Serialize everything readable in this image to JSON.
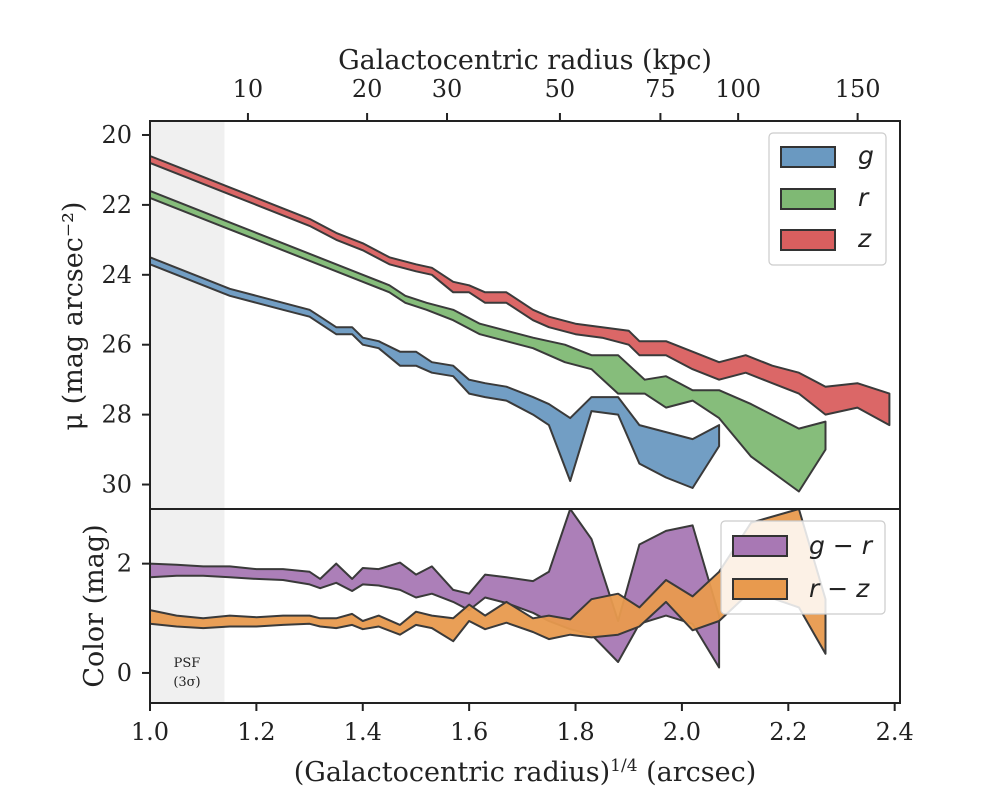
{
  "chart_data": [
    {
      "type": "area",
      "panel": "surface-brightness",
      "top_xlabel": "Galactocentric radius (kpc)",
      "top_ticks": [
        {
          "label": "10",
          "radius_kpc": 10
        },
        {
          "label": "20",
          "radius_kpc": 20
        },
        {
          "label": "30",
          "radius_kpc": 30
        },
        {
          "label": "50",
          "radius_kpc": 50
        },
        {
          "label": "75",
          "radius_kpc": 75
        },
        {
          "label": "100",
          "radius_kpc": 100
        },
        {
          "label": "150",
          "radius_kpc": 150
        }
      ],
      "ylabel": "μ (mag arcsec⁻²)",
      "ylim": [
        30.7,
        19.6
      ],
      "yticks": [
        20,
        22,
        24,
        26,
        28,
        30
      ],
      "xlim": [
        1.0,
        2.41
      ],
      "shaded_region": {
        "x": [
          1.0,
          1.14
        ],
        "label_line1": "PSF",
        "label_line2": "(3σ)"
      },
      "legend": {
        "position": "top-right",
        "entries": [
          "g",
          "r",
          "z"
        ]
      },
      "series": [
        {
          "name": "g",
          "color": "#6a99c1",
          "x": [
            1.0,
            1.05,
            1.1,
            1.15,
            1.2,
            1.25,
            1.3,
            1.32,
            1.35,
            1.38,
            1.4,
            1.43,
            1.47,
            1.5,
            1.53,
            1.57,
            1.6,
            1.63,
            1.67,
            1.72,
            1.75,
            1.79,
            1.83,
            1.88,
            1.92,
            1.97,
            2.02,
            2.07
          ],
          "lower": [
            23.5,
            23.8,
            24.1,
            24.4,
            24.6,
            24.8,
            25.0,
            25.2,
            25.5,
            25.5,
            25.8,
            25.9,
            26.2,
            26.2,
            26.5,
            26.6,
            27.0,
            27.1,
            27.2,
            27.5,
            27.7,
            28.1,
            27.5,
            27.5,
            28.3,
            28.5,
            28.7,
            28.3
          ],
          "upper": [
            23.7,
            24.0,
            24.3,
            24.6,
            24.8,
            25.0,
            25.2,
            25.4,
            25.7,
            25.7,
            26.0,
            26.1,
            26.6,
            26.6,
            26.8,
            26.9,
            27.4,
            27.5,
            27.6,
            28.0,
            28.3,
            29.9,
            27.9,
            28.0,
            29.4,
            29.8,
            30.1,
            28.9
          ]
        },
        {
          "name": "r",
          "color": "#7fb974",
          "x": [
            1.0,
            1.05,
            1.1,
            1.15,
            1.2,
            1.25,
            1.3,
            1.35,
            1.4,
            1.45,
            1.48,
            1.52,
            1.57,
            1.62,
            1.67,
            1.72,
            1.78,
            1.83,
            1.88,
            1.93,
            1.97,
            2.02,
            2.07,
            2.13,
            2.22,
            2.27
          ],
          "lower": [
            21.6,
            21.9,
            22.2,
            22.5,
            22.8,
            23.1,
            23.4,
            23.7,
            24.0,
            24.3,
            24.6,
            24.8,
            25.0,
            25.4,
            25.6,
            25.8,
            26.0,
            26.3,
            26.3,
            27.0,
            26.9,
            27.3,
            27.3,
            27.7,
            28.4,
            28.2
          ],
          "upper": [
            21.8,
            22.1,
            22.4,
            22.7,
            23.0,
            23.3,
            23.6,
            23.9,
            24.2,
            24.5,
            24.8,
            25.0,
            25.3,
            25.7,
            25.9,
            26.1,
            26.5,
            26.7,
            27.4,
            27.4,
            27.8,
            27.6,
            28.1,
            29.2,
            30.2,
            29.0
          ]
        },
        {
          "name": "z",
          "color": "#d95f5f",
          "x": [
            1.0,
            1.05,
            1.1,
            1.15,
            1.2,
            1.25,
            1.3,
            1.35,
            1.4,
            1.45,
            1.5,
            1.53,
            1.57,
            1.6,
            1.63,
            1.67,
            1.72,
            1.75,
            1.8,
            1.85,
            1.9,
            1.92,
            1.97,
            2.02,
            2.07,
            2.12,
            2.17,
            2.22,
            2.27,
            2.33,
            2.39
          ],
          "lower": [
            20.6,
            20.9,
            21.2,
            21.5,
            21.8,
            22.1,
            22.4,
            22.8,
            23.1,
            23.5,
            23.7,
            23.8,
            24.2,
            24.3,
            24.5,
            24.5,
            25.0,
            25.2,
            25.4,
            25.5,
            25.6,
            25.9,
            25.9,
            26.2,
            26.5,
            26.3,
            26.6,
            26.8,
            27.2,
            27.1,
            27.4
          ],
          "upper": [
            20.8,
            21.1,
            21.4,
            21.7,
            22.0,
            22.3,
            22.6,
            23.0,
            23.3,
            23.7,
            23.9,
            24.0,
            24.5,
            24.5,
            24.8,
            24.8,
            25.3,
            25.5,
            25.7,
            25.8,
            26.0,
            26.3,
            26.3,
            26.7,
            27.0,
            26.8,
            27.1,
            27.4,
            28.0,
            27.8,
            28.3
          ]
        }
      ]
    },
    {
      "type": "area",
      "panel": "color",
      "xlabel": "(Galactocentric radius)^1/4 (arcsec)",
      "xlabel_base": "(Galactocentric radius)",
      "xlabel_exp": "1/4",
      "xlabel_unit": " (arcsec)",
      "ylabel": "Color (mag)",
      "ylim": [
        -0.55,
        3.0
      ],
      "yticks": [
        0,
        2
      ],
      "xlim": [
        1.0,
        2.41
      ],
      "xticks": [
        1.0,
        1.2,
        1.4,
        1.6,
        1.8,
        2.0,
        2.2,
        2.4
      ],
      "xtick_labels": [
        "1.0",
        "1.2",
        "1.4",
        "1.6",
        "1.8",
        "2.0",
        "2.2",
        "2.4"
      ],
      "legend": {
        "position": "top-right",
        "entries": [
          "g − r",
          "r − z"
        ]
      },
      "series": [
        {
          "name": "g − r",
          "color": "#a878b4",
          "x": [
            1.0,
            1.05,
            1.1,
            1.15,
            1.2,
            1.25,
            1.3,
            1.32,
            1.35,
            1.38,
            1.4,
            1.43,
            1.47,
            1.5,
            1.53,
            1.57,
            1.6,
            1.63,
            1.67,
            1.72,
            1.75,
            1.79,
            1.83,
            1.88,
            1.92,
            1.97,
            2.02,
            2.07
          ],
          "lower": [
            1.75,
            1.78,
            1.78,
            1.75,
            1.72,
            1.7,
            1.62,
            1.55,
            1.65,
            1.5,
            1.62,
            1.6,
            1.52,
            1.38,
            1.45,
            1.3,
            1.15,
            1.38,
            1.28,
            1.1,
            0.95,
            0.8,
            0.7,
            0.2,
            0.9,
            1.05,
            0.9,
            0.1
          ],
          "upper": [
            2.0,
            1.98,
            1.95,
            1.95,
            1.9,
            1.9,
            1.85,
            1.72,
            2.0,
            1.72,
            1.92,
            1.9,
            2.02,
            1.8,
            1.95,
            1.52,
            1.45,
            1.8,
            1.75,
            1.68,
            1.85,
            3.1,
            2.45,
            0.95,
            2.35,
            2.6,
            2.7,
            1.05
          ]
        },
        {
          "name": "r − z",
          "color": "#e89a4e",
          "x": [
            1.0,
            1.05,
            1.1,
            1.15,
            1.2,
            1.25,
            1.3,
            1.32,
            1.35,
            1.38,
            1.4,
            1.43,
            1.47,
            1.5,
            1.53,
            1.57,
            1.6,
            1.63,
            1.67,
            1.72,
            1.75,
            1.79,
            1.83,
            1.88,
            1.92,
            1.97,
            2.02,
            2.07,
            2.13,
            2.22,
            2.27
          ],
          "lower": [
            0.9,
            0.85,
            0.82,
            0.85,
            0.85,
            0.88,
            0.9,
            0.85,
            0.82,
            0.88,
            0.8,
            0.85,
            0.7,
            0.88,
            0.82,
            0.58,
            0.95,
            0.8,
            0.92,
            0.75,
            0.62,
            0.7,
            0.65,
            0.7,
            0.85,
            1.3,
            0.78,
            0.95,
            1.5,
            1.2,
            0.35
          ],
          "upper": [
            1.15,
            1.05,
            1.0,
            1.05,
            1.02,
            1.05,
            1.05,
            1.0,
            1.0,
            1.08,
            0.95,
            1.05,
            0.88,
            1.12,
            1.05,
            1.0,
            1.25,
            1.05,
            1.3,
            1.0,
            1.05,
            0.98,
            1.35,
            1.45,
            1.2,
            1.7,
            1.4,
            1.85,
            2.75,
            3.1,
            1.35
          ]
        }
      ]
    }
  ]
}
